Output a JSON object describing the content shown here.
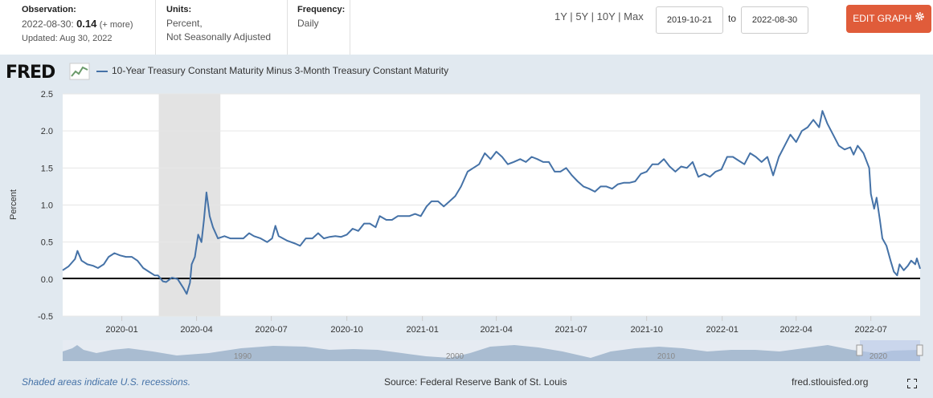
{
  "header": {
    "observation_label": "Observation:",
    "observation_date": "2022-08-30:",
    "observation_value": "0.14",
    "observation_more": "(+ more)",
    "updated": "Updated: Aug 30, 2022",
    "units_label": "Units:",
    "units_line1": "Percent,",
    "units_line2": "Not Seasonally Adjusted",
    "frequency_label": "Frequency:",
    "frequency_value": "Daily",
    "range_buttons": [
      "1Y",
      "5Y",
      "10Y",
      "Max"
    ],
    "range_sep": "|",
    "start_date": "2019-10-21",
    "to_label": "to",
    "end_date": "2022-08-30",
    "edit_label": "EDIT GRAPH"
  },
  "brand": "FRED",
  "icons": {
    "brand": "fred-graph-icon",
    "edit": "gear-icon",
    "fullscreen": "fullscreen-icon"
  },
  "colors": {
    "series": "#4572a7",
    "recession": "#e3e3e3",
    "background": "#e1e9f0",
    "edit_button": "#e05c3a"
  },
  "footer": {
    "note": "Shaded areas indicate U.S. recessions.",
    "source": "Source: Federal Reserve Bank of St. Louis",
    "url": "fred.stlouisfed.org"
  },
  "navigator": {
    "labels": [
      "1990",
      "2000",
      "2010",
      "2020"
    ]
  },
  "chart_data": {
    "type": "line",
    "title": "",
    "ylabel": "Percent",
    "xlim": [
      "2019-10-21",
      "2022-08-30"
    ],
    "ylim": [
      -0.5,
      2.5
    ],
    "yticks": [
      -0.5,
      0.0,
      0.5,
      1.0,
      1.5,
      2.0,
      2.5
    ],
    "xticks": [
      "2020-01",
      "2020-04",
      "2020-07",
      "2020-10",
      "2021-01",
      "2021-04",
      "2021-07",
      "2021-10",
      "2022-01",
      "2022-04",
      "2022-07"
    ],
    "grid": true,
    "recession": [
      "2020-02-15",
      "2020-04-30"
    ],
    "series": [
      {
        "name": "10-Year Treasury Constant Maturity Minus 3-Month Treasury Constant Maturity",
        "points": [
          [
            "2019-10-21",
            0.12
          ],
          [
            "2019-10-28",
            0.17
          ],
          [
            "2019-11-05",
            0.27
          ],
          [
            "2019-11-08",
            0.38
          ],
          [
            "2019-11-13",
            0.25
          ],
          [
            "2019-11-20",
            0.2
          ],
          [
            "2019-11-27",
            0.18
          ],
          [
            "2019-12-03",
            0.15
          ],
          [
            "2019-12-10",
            0.2
          ],
          [
            "2019-12-16",
            0.3
          ],
          [
            "2019-12-23",
            0.35
          ],
          [
            "2019-12-30",
            0.32
          ],
          [
            "2020-01-06",
            0.3
          ],
          [
            "2020-01-13",
            0.3
          ],
          [
            "2020-01-20",
            0.25
          ],
          [
            "2020-01-27",
            0.15
          ],
          [
            "2020-02-03",
            0.1
          ],
          [
            "2020-02-10",
            0.05
          ],
          [
            "2020-02-14",
            0.05
          ],
          [
            "2020-02-20",
            -0.03
          ],
          [
            "2020-02-24",
            -0.04
          ],
          [
            "2020-03-02",
            0.02
          ],
          [
            "2020-03-09",
            0.0
          ],
          [
            "2020-03-16",
            -0.12
          ],
          [
            "2020-03-20",
            -0.2
          ],
          [
            "2020-03-24",
            -0.05
          ],
          [
            "2020-03-26",
            0.2
          ],
          [
            "2020-03-30",
            0.3
          ],
          [
            "2020-04-03",
            0.6
          ],
          [
            "2020-04-07",
            0.5
          ],
          [
            "2020-04-10",
            0.8
          ],
          [
            "2020-04-13",
            1.17
          ],
          [
            "2020-04-17",
            0.85
          ],
          [
            "2020-04-21",
            0.7
          ],
          [
            "2020-04-27",
            0.55
          ],
          [
            "2020-05-05",
            0.58
          ],
          [
            "2020-05-12",
            0.55
          ],
          [
            "2020-05-20",
            0.55
          ],
          [
            "2020-05-28",
            0.55
          ],
          [
            "2020-06-04",
            0.62
          ],
          [
            "2020-06-10",
            0.58
          ],
          [
            "2020-06-18",
            0.55
          ],
          [
            "2020-06-26",
            0.5
          ],
          [
            "2020-07-02",
            0.55
          ],
          [
            "2020-07-06",
            0.72
          ],
          [
            "2020-07-10",
            0.58
          ],
          [
            "2020-07-20",
            0.52
          ],
          [
            "2020-07-30",
            0.48
          ],
          [
            "2020-08-05",
            0.45
          ],
          [
            "2020-08-12",
            0.55
          ],
          [
            "2020-08-20",
            0.55
          ],
          [
            "2020-08-27",
            0.62
          ],
          [
            "2020-09-03",
            0.55
          ],
          [
            "2020-09-10",
            0.57
          ],
          [
            "2020-09-17",
            0.58
          ],
          [
            "2020-09-24",
            0.57
          ],
          [
            "2020-10-01",
            0.6
          ],
          [
            "2020-10-08",
            0.68
          ],
          [
            "2020-10-15",
            0.65
          ],
          [
            "2020-10-22",
            0.75
          ],
          [
            "2020-10-29",
            0.75
          ],
          [
            "2020-11-05",
            0.7
          ],
          [
            "2020-11-10",
            0.85
          ],
          [
            "2020-11-18",
            0.8
          ],
          [
            "2020-11-25",
            0.8
          ],
          [
            "2020-12-02",
            0.85
          ],
          [
            "2020-12-09",
            0.85
          ],
          [
            "2020-12-16",
            0.85
          ],
          [
            "2020-12-23",
            0.88
          ],
          [
            "2020-12-30",
            0.85
          ],
          [
            "2021-01-06",
            0.98
          ],
          [
            "2021-01-12",
            1.05
          ],
          [
            "2021-01-20",
            1.05
          ],
          [
            "2021-01-27",
            0.98
          ],
          [
            "2021-02-03",
            1.05
          ],
          [
            "2021-02-10",
            1.12
          ],
          [
            "2021-02-17",
            1.25
          ],
          [
            "2021-02-25",
            1.45
          ],
          [
            "2021-03-04",
            1.5
          ],
          [
            "2021-03-11",
            1.55
          ],
          [
            "2021-03-18",
            1.7
          ],
          [
            "2021-03-25",
            1.62
          ],
          [
            "2021-04-01",
            1.72
          ],
          [
            "2021-04-08",
            1.65
          ],
          [
            "2021-04-15",
            1.55
          ],
          [
            "2021-04-22",
            1.58
          ],
          [
            "2021-04-30",
            1.62
          ],
          [
            "2021-05-07",
            1.58
          ],
          [
            "2021-05-14",
            1.65
          ],
          [
            "2021-05-21",
            1.62
          ],
          [
            "2021-05-28",
            1.58
          ],
          [
            "2021-06-04",
            1.58
          ],
          [
            "2021-06-11",
            1.45
          ],
          [
            "2021-06-18",
            1.45
          ],
          [
            "2021-06-25",
            1.5
          ],
          [
            "2021-07-02",
            1.4
          ],
          [
            "2021-07-09",
            1.32
          ],
          [
            "2021-07-16",
            1.25
          ],
          [
            "2021-07-23",
            1.22
          ],
          [
            "2021-07-30",
            1.18
          ],
          [
            "2021-08-06",
            1.25
          ],
          [
            "2021-08-13",
            1.25
          ],
          [
            "2021-08-20",
            1.22
          ],
          [
            "2021-08-27",
            1.28
          ],
          [
            "2021-09-03",
            1.3
          ],
          [
            "2021-09-10",
            1.3
          ],
          [
            "2021-09-17",
            1.32
          ],
          [
            "2021-09-24",
            1.42
          ],
          [
            "2021-10-01",
            1.45
          ],
          [
            "2021-10-08",
            1.55
          ],
          [
            "2021-10-15",
            1.55
          ],
          [
            "2021-10-22",
            1.62
          ],
          [
            "2021-10-29",
            1.52
          ],
          [
            "2021-11-05",
            1.45
          ],
          [
            "2021-11-12",
            1.52
          ],
          [
            "2021-11-19",
            1.5
          ],
          [
            "2021-11-26",
            1.58
          ],
          [
            "2021-12-03",
            1.38
          ],
          [
            "2021-12-10",
            1.42
          ],
          [
            "2021-12-17",
            1.38
          ],
          [
            "2021-12-24",
            1.45
          ],
          [
            "2021-12-31",
            1.48
          ],
          [
            "2022-01-07",
            1.65
          ],
          [
            "2022-01-14",
            1.65
          ],
          [
            "2022-01-21",
            1.6
          ],
          [
            "2022-01-28",
            1.55
          ],
          [
            "2022-02-04",
            1.7
          ],
          [
            "2022-02-11",
            1.65
          ],
          [
            "2022-02-18",
            1.58
          ],
          [
            "2022-02-25",
            1.65
          ],
          [
            "2022-03-04",
            1.4
          ],
          [
            "2022-03-11",
            1.65
          ],
          [
            "2022-03-18",
            1.8
          ],
          [
            "2022-03-25",
            1.95
          ],
          [
            "2022-04-01",
            1.85
          ],
          [
            "2022-04-08",
            2.0
          ],
          [
            "2022-04-15",
            2.05
          ],
          [
            "2022-04-22",
            2.15
          ],
          [
            "2022-04-29",
            2.05
          ],
          [
            "2022-05-03",
            2.27
          ],
          [
            "2022-05-09",
            2.1
          ],
          [
            "2022-05-16",
            1.95
          ],
          [
            "2022-05-23",
            1.8
          ],
          [
            "2022-05-30",
            1.75
          ],
          [
            "2022-06-06",
            1.78
          ],
          [
            "2022-06-10",
            1.68
          ],
          [
            "2022-06-15",
            1.8
          ],
          [
            "2022-06-22",
            1.7
          ],
          [
            "2022-06-29",
            1.5
          ],
          [
            "2022-07-01",
            1.15
          ],
          [
            "2022-07-05",
            0.95
          ],
          [
            "2022-07-08",
            1.1
          ],
          [
            "2022-07-12",
            0.8
          ],
          [
            "2022-07-15",
            0.55
          ],
          [
            "2022-07-20",
            0.45
          ],
          [
            "2022-07-25",
            0.25
          ],
          [
            "2022-07-29",
            0.1
          ],
          [
            "2022-08-02",
            0.05
          ],
          [
            "2022-08-05",
            0.2
          ],
          [
            "2022-08-10",
            0.12
          ],
          [
            "2022-08-15",
            0.18
          ],
          [
            "2022-08-19",
            0.25
          ],
          [
            "2022-08-24",
            0.2
          ],
          [
            "2022-08-26",
            0.28
          ],
          [
            "2022-08-30",
            0.14
          ]
        ]
      }
    ]
  }
}
